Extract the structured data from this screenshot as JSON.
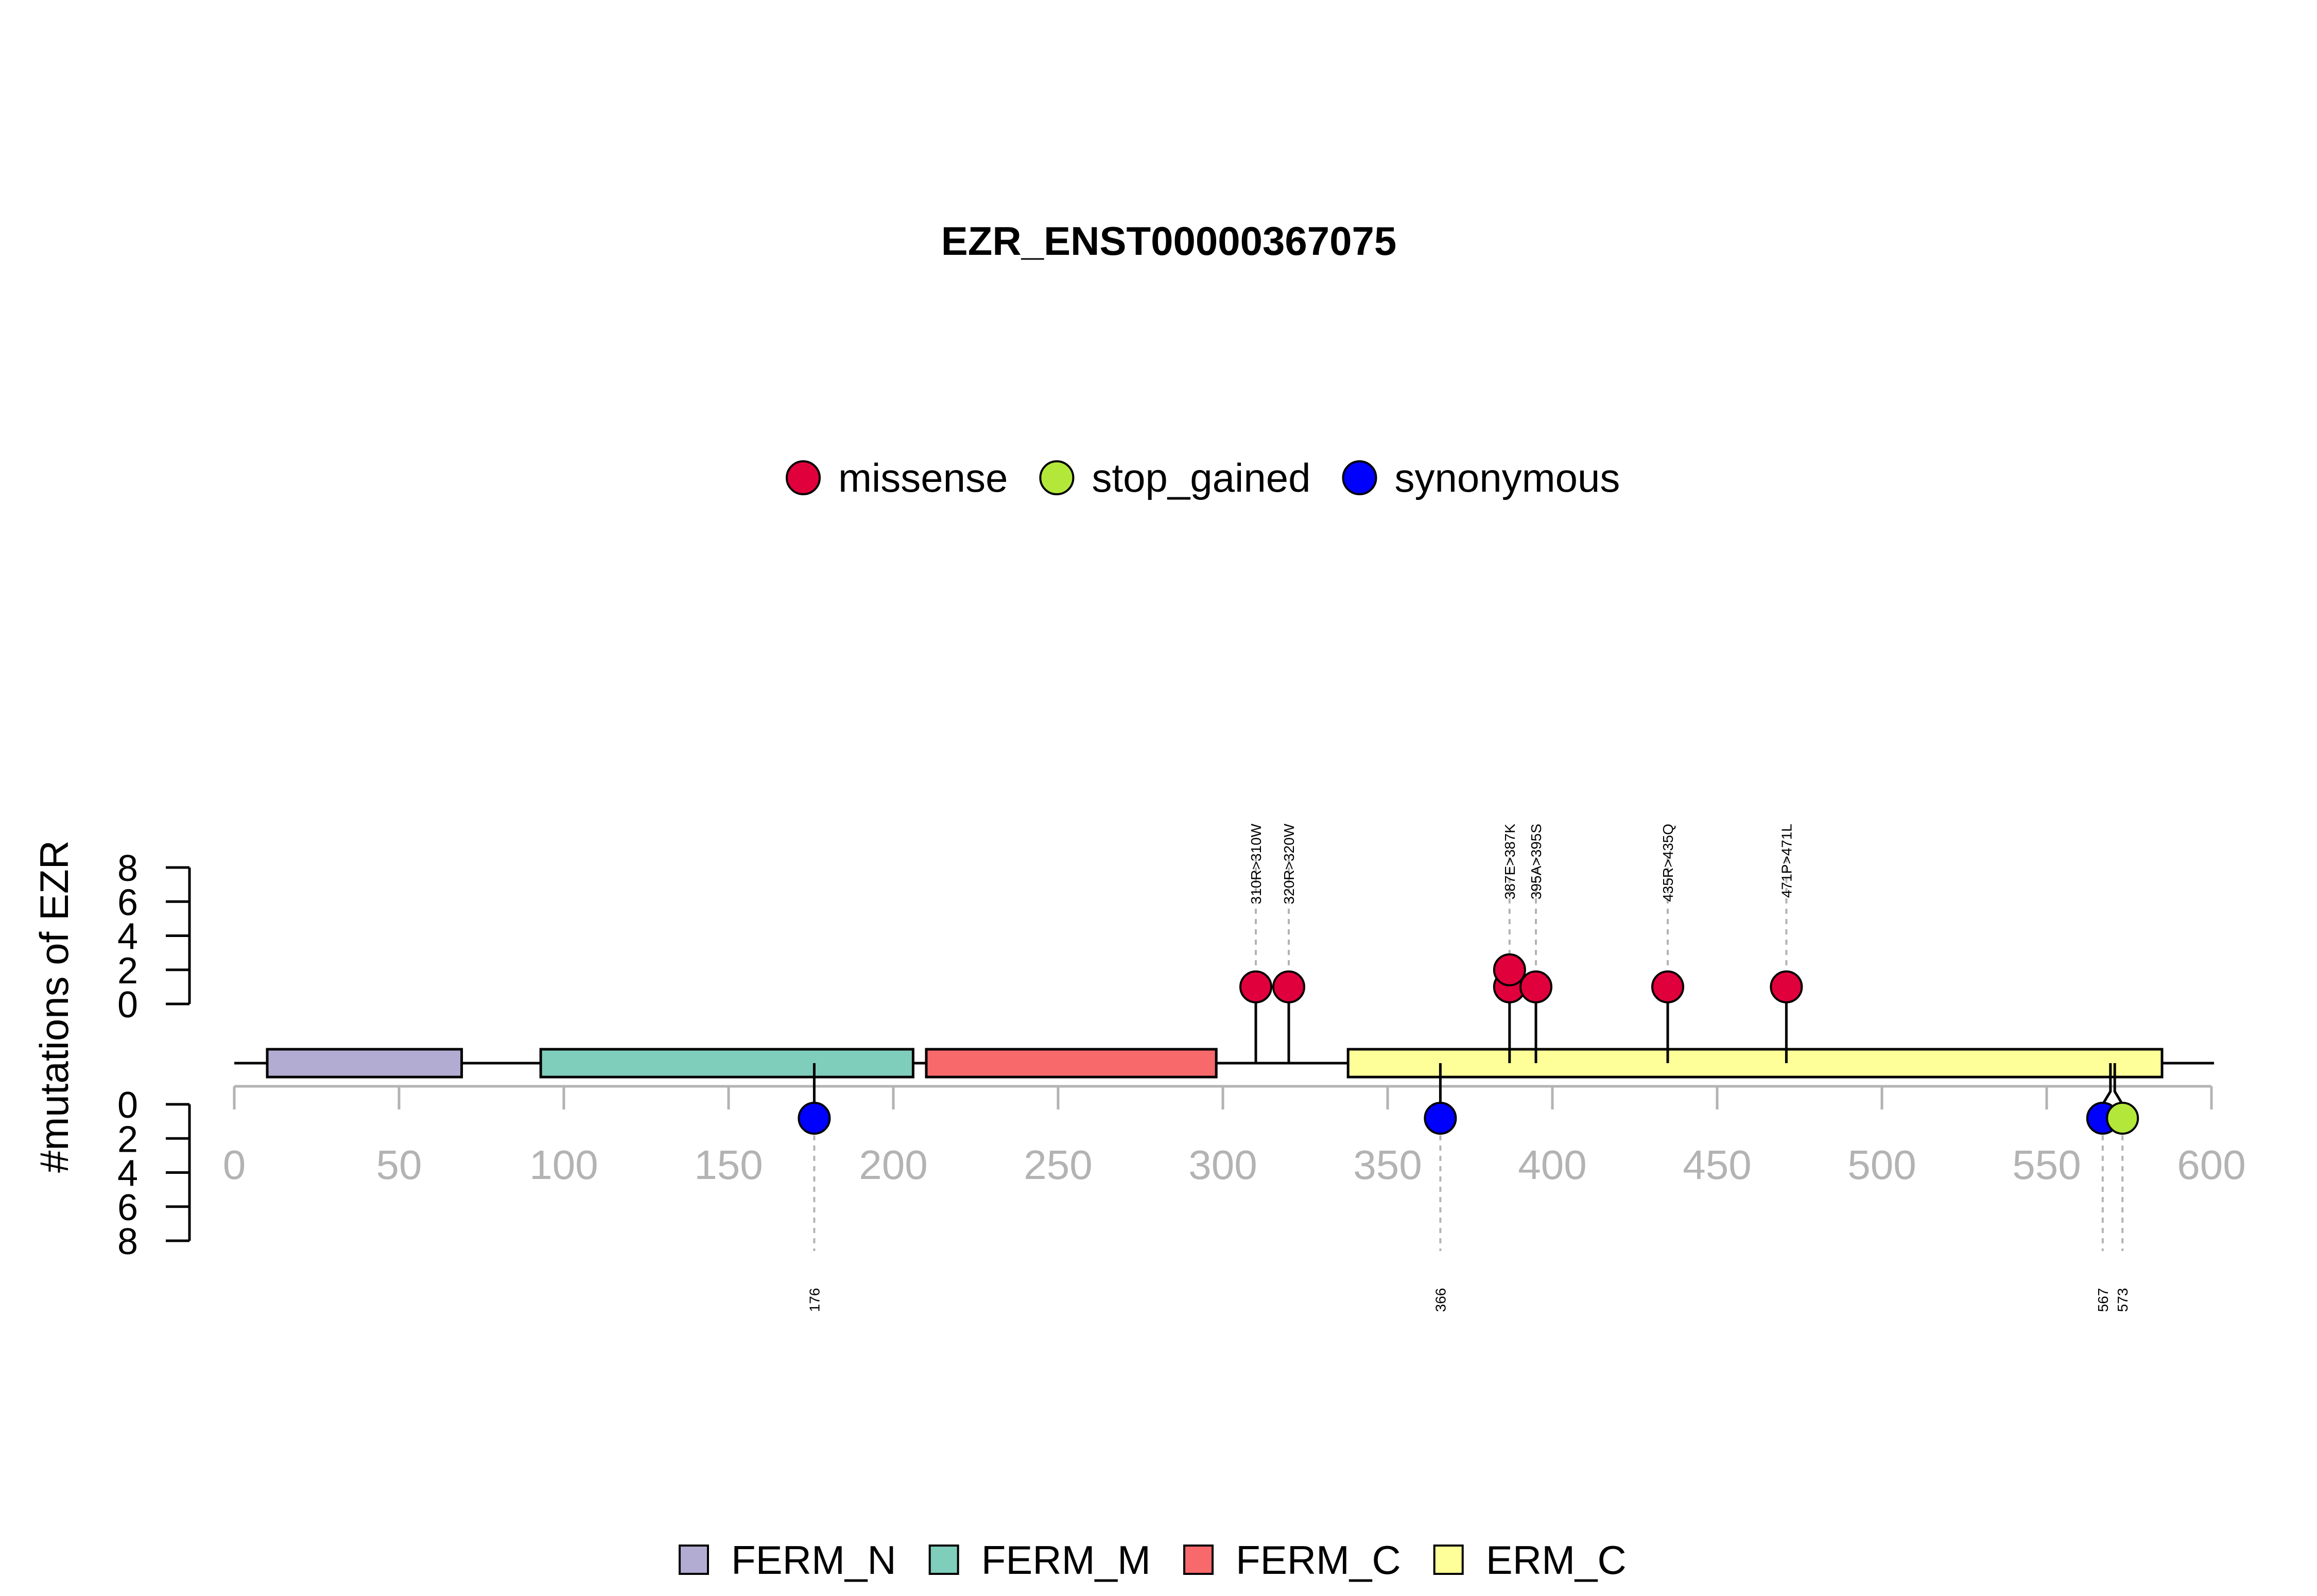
{
  "chart_data": {
    "type": "lollipop",
    "title": "EZR_ENST00000367075",
    "ylabel": "#mutations of EZR",
    "protein_length": 586,
    "xlim": [
      0,
      600
    ],
    "x_ticks": [
      "0",
      "50",
      "100",
      "150",
      "200",
      "250",
      "300",
      "350",
      "400",
      "450",
      "500",
      "550",
      "600"
    ],
    "y_ticks": [
      "0",
      "2",
      "4",
      "6",
      "8"
    ],
    "ylim_top": [
      0,
      8
    ],
    "ylim_bottom": [
      0,
      8
    ],
    "mutation_legend": [
      {
        "name": "missense",
        "color": "#e0003c"
      },
      {
        "name": "stop_gained",
        "color": "#b3e83a"
      },
      {
        "name": "synonymous",
        "color": "#0000ff"
      }
    ],
    "domains": [
      {
        "name": "FERM_N",
        "start": 10,
        "end": 69,
        "color": "#b2abd2"
      },
      {
        "name": "FERM_M",
        "start": 93,
        "end": 206,
        "color": "#7fcdbb"
      },
      {
        "name": "FERM_C",
        "start": 210,
        "end": 298,
        "color": "#f8696b"
      },
      {
        "name": "ERM_C",
        "start": 338,
        "end": 585,
        "color": "#ffff99"
      }
    ],
    "mutations_top": [
      {
        "pos": 310,
        "label": "310R>310W",
        "type": "missense",
        "count": 1
      },
      {
        "pos": 320,
        "label": "320R>320W",
        "type": "missense",
        "count": 1
      },
      {
        "pos": 387,
        "label": "387E>387K",
        "type": "missense",
        "count": 2
      },
      {
        "pos": 395,
        "label": "395A>395S",
        "type": "missense",
        "count": 1
      },
      {
        "pos": 435,
        "label": "435R>435Q",
        "type": "missense",
        "count": 1
      },
      {
        "pos": 471,
        "label": "471P>471L",
        "type": "missense",
        "count": 1
      }
    ],
    "mutations_bottom": [
      {
        "pos": 176,
        "label": "176",
        "type": "synonymous",
        "count": 1
      },
      {
        "pos": 366,
        "label": "366",
        "type": "synonymous",
        "count": 1
      },
      {
        "pos": 567,
        "label": "567",
        "type": "synonymous",
        "count": 1
      },
      {
        "pos": 573,
        "label": "573",
        "type": "stop_gained",
        "count": 1
      }
    ]
  }
}
